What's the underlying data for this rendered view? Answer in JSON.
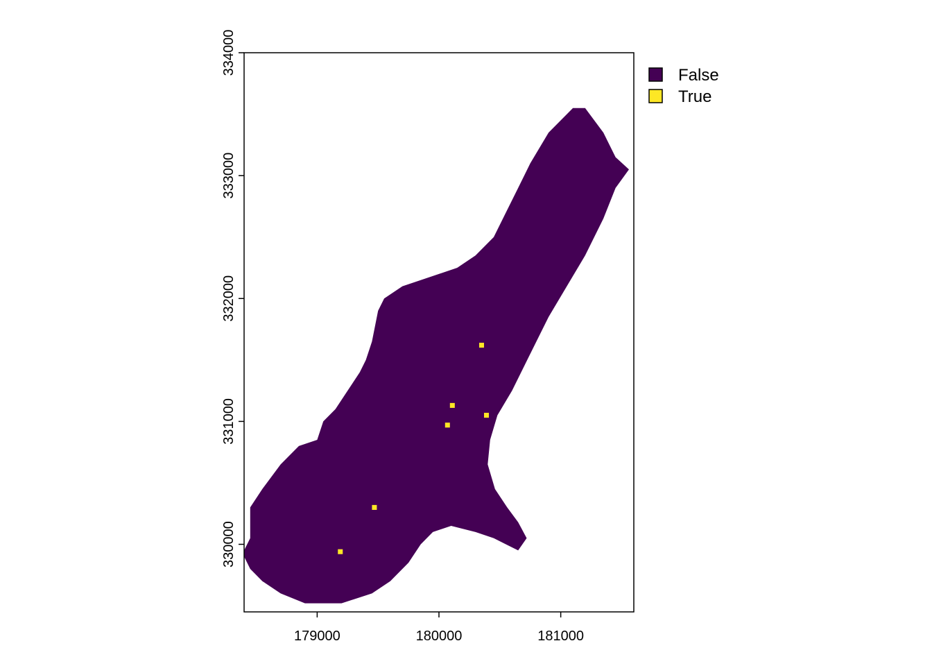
{
  "chart_data": {
    "type": "heatmap",
    "title": "",
    "xlabel": "",
    "ylabel": "",
    "xlim": [
      178400,
      181600
    ],
    "ylim": [
      329450,
      334000
    ],
    "grid": false,
    "legend_position": "top-right",
    "x_ticks": [
      {
        "value": 179000,
        "label": "179000"
      },
      {
        "value": 180000,
        "label": "180000"
      },
      {
        "value": 181000,
        "label": "181000"
      }
    ],
    "y_ticks": [
      {
        "value": 330000,
        "label": "330000"
      },
      {
        "value": 331000,
        "label": "331000"
      },
      {
        "value": 332000,
        "label": "332000"
      },
      {
        "value": 333000,
        "label": "333000"
      },
      {
        "value": 334000,
        "label": "334000"
      }
    ],
    "legend": [
      {
        "label": "False",
        "color": "#440154"
      },
      {
        "label": "True",
        "color": "#FDE725"
      }
    ],
    "region_false_outline": [
      [
        178400,
        329950
      ],
      [
        178450,
        330050
      ],
      [
        178450,
        330300
      ],
      [
        178550,
        330450
      ],
      [
        178700,
        330650
      ],
      [
        178850,
        330800
      ],
      [
        179000,
        330850
      ],
      [
        179050,
        331000
      ],
      [
        179150,
        331100
      ],
      [
        179250,
        331250
      ],
      [
        179350,
        331400
      ],
      [
        179400,
        331500
      ],
      [
        179450,
        331650
      ],
      [
        179500,
        331900
      ],
      [
        179550,
        332000
      ],
      [
        179700,
        332100
      ],
      [
        179850,
        332150
      ],
      [
        180000,
        332200
      ],
      [
        180150,
        332250
      ],
      [
        180300,
        332350
      ],
      [
        180450,
        332500
      ],
      [
        180550,
        332700
      ],
      [
        180650,
        332900
      ],
      [
        180750,
        333100
      ],
      [
        180900,
        333350
      ],
      [
        181100,
        333550
      ],
      [
        181200,
        333550
      ],
      [
        181350,
        333350
      ],
      [
        181450,
        333150
      ],
      [
        181560,
        333050
      ],
      [
        181450,
        332900
      ],
      [
        181350,
        332650
      ],
      [
        181200,
        332350
      ],
      [
        181050,
        332100
      ],
      [
        180900,
        331850
      ],
      [
        180800,
        331650
      ],
      [
        180700,
        331450
      ],
      [
        180600,
        331250
      ],
      [
        180480,
        331050
      ],
      [
        180420,
        330850
      ],
      [
        180400,
        330650
      ],
      [
        180460,
        330450
      ],
      [
        180560,
        330300
      ],
      [
        180650,
        330180
      ],
      [
        180720,
        330050
      ],
      [
        180650,
        329950
      ],
      [
        180550,
        330000
      ],
      [
        180450,
        330050
      ],
      [
        180300,
        330100
      ],
      [
        180100,
        330150
      ],
      [
        179950,
        330100
      ],
      [
        179850,
        330000
      ],
      [
        179750,
        329850
      ],
      [
        179600,
        329700
      ],
      [
        179450,
        329600
      ],
      [
        179200,
        329520
      ],
      [
        178900,
        329520
      ],
      [
        178700,
        329600
      ],
      [
        178550,
        329700
      ],
      [
        178450,
        329800
      ],
      [
        178400,
        329900
      ]
    ],
    "true_cells": [
      {
        "x": 180350,
        "y": 331620
      },
      {
        "x": 180110,
        "y": 331130
      },
      {
        "x": 180070,
        "y": 330970
      },
      {
        "x": 180390,
        "y": 331050
      },
      {
        "x": 179470,
        "y": 330300
      },
      {
        "x": 179190,
        "y": 329940
      }
    ],
    "cell_size": 40
  }
}
